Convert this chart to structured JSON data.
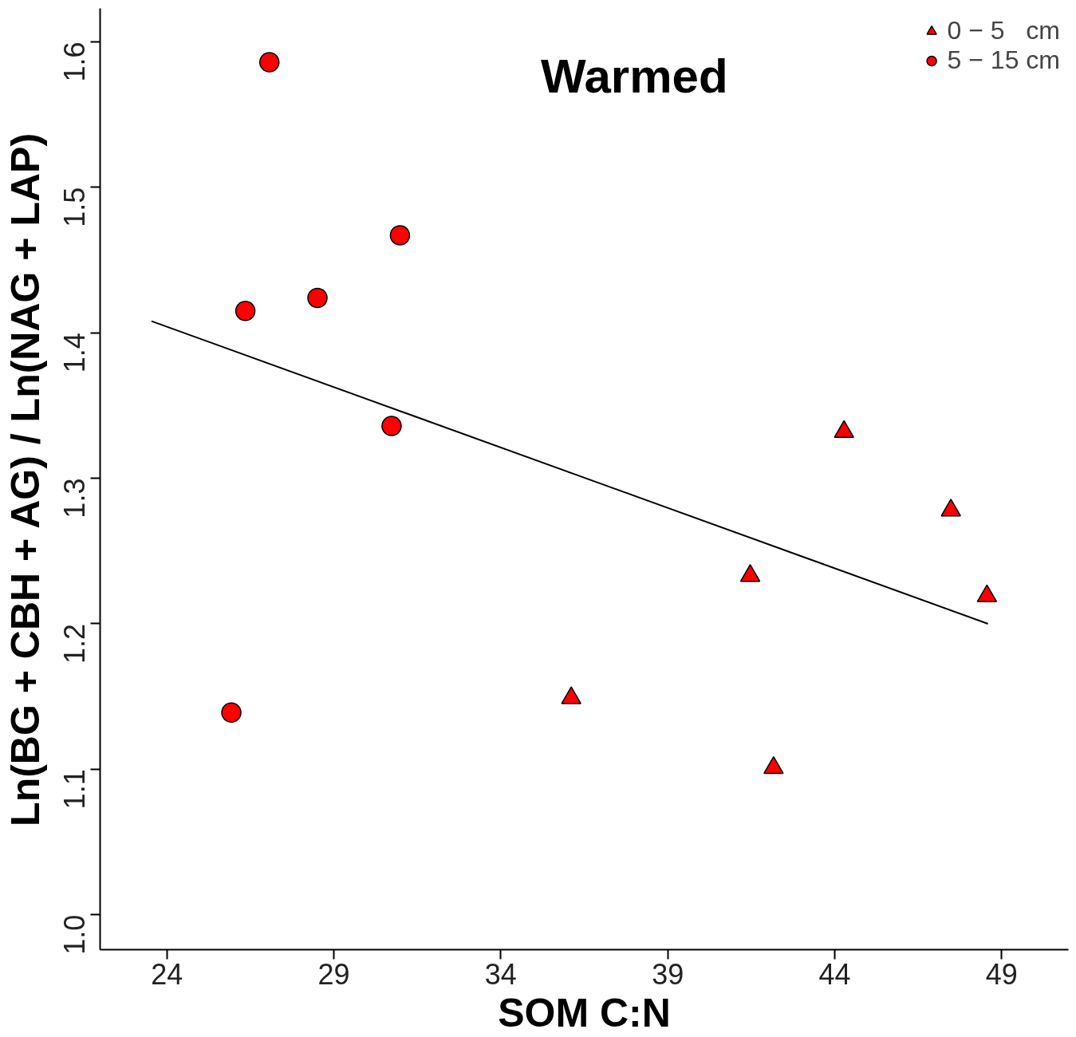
{
  "chart_data": {
    "type": "scatter",
    "title": "Warmed",
    "xlabel": "SOM C:N",
    "ylabel": "Ln(BG + CBH + AG) / Ln(NAG + LAP)",
    "xlim": [
      22,
      51
    ],
    "ylim": [
      0.976,
      1.623
    ],
    "xticks": [
      24,
      29,
      34,
      39,
      44,
      49
    ],
    "yticks": [
      {
        "value": 1.0,
        "label": "1.0"
      },
      {
        "value": 1.1,
        "label": "1.1"
      },
      {
        "value": 1.2,
        "label": "1.2"
      },
      {
        "value": 1.3,
        "label": "1.3"
      },
      {
        "value": 1.4,
        "label": "1.4"
      },
      {
        "value": 1.5,
        "label": "1.5"
      },
      {
        "value": 1.6,
        "label": "1.6"
      }
    ],
    "grid": false,
    "legend": "top right",
    "series": [
      {
        "name": "0 − 5   cm",
        "marker": "triangle",
        "color": "#ff0000",
        "x": [
          36.11,
          42.17,
          41.47,
          44.28,
          47.48,
          48.56
        ],
        "values": [
          1.149,
          1.101,
          1.233,
          1.332,
          1.278,
          1.219
        ]
      },
      {
        "name": "5 − 15 cm",
        "marker": "circle",
        "color": "#ff0000",
        "x": [
          27.07,
          30.98,
          26.35,
          28.51,
          30.73,
          25.93
        ],
        "values": [
          1.586,
          1.467,
          1.415,
          1.424,
          1.336,
          1.139
        ]
      },
      {
        "type": "line",
        "color": "#000000",
        "x": [
          23.54,
          48.59
        ],
        "values": [
          1.408,
          1.2
        ]
      }
    ]
  }
}
